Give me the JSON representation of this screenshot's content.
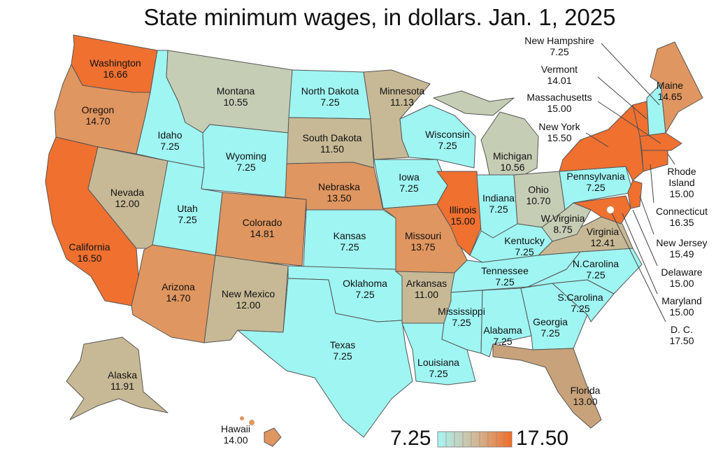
{
  "title": "State minimum wages, in dollars. Jan. 1, 2025",
  "legend": {
    "min": "7.25",
    "max": "17.50",
    "colors": [
      "#aef4f4",
      "#b7e3db",
      "#c0d2c2",
      "#c9c1a9",
      "#d2b090",
      "#db9f77",
      "#e48e5e",
      "#ed7d45",
      "#f06a2c"
    ]
  },
  "colors": {
    "federal": "#9ff5f2",
    "tan": "#c8b996",
    "sage": "#c6cdb5",
    "orange_light": "#e09660",
    "orange_dark": "#f07030",
    "dc_marker": "#ffffff",
    "coast": "#b98a5f"
  },
  "states": [
    {
      "name": "Washington",
      "wage": "16.66"
    },
    {
      "name": "Oregon",
      "wage": "14.70"
    },
    {
      "name": "California",
      "wage": "16.50"
    },
    {
      "name": "Nevada",
      "wage": "12.00"
    },
    {
      "name": "Idaho",
      "wage": "7.25"
    },
    {
      "name": "Montana",
      "wage": "10.55"
    },
    {
      "name": "Wyoming",
      "wage": "7.25"
    },
    {
      "name": "Utah",
      "wage": "7.25"
    },
    {
      "name": "Colorado",
      "wage": "14.81"
    },
    {
      "name": "Arizona",
      "wage": "14.70"
    },
    {
      "name": "New Mexico",
      "wage": "12.00"
    },
    {
      "name": "North Dakota",
      "wage": "7.25"
    },
    {
      "name": "South Dakota",
      "wage": "11.50"
    },
    {
      "name": "Nebraska",
      "wage": "13.50"
    },
    {
      "name": "Kansas",
      "wage": "7.25"
    },
    {
      "name": "Oklahoma",
      "wage": "7.25"
    },
    {
      "name": "Texas",
      "wage": "7.25"
    },
    {
      "name": "Minnesota",
      "wage": "11.13"
    },
    {
      "name": "Iowa",
      "wage": "7.25"
    },
    {
      "name": "Missouri",
      "wage": "13.75"
    },
    {
      "name": "Arkansas",
      "wage": "11.00"
    },
    {
      "name": "Louisiana",
      "wage": "7.25"
    },
    {
      "name": "Wisconsin",
      "wage": "7.25"
    },
    {
      "name": "Illinois",
      "wage": "15.00"
    },
    {
      "name": "Michigan",
      "wage": "10.56"
    },
    {
      "name": "Indiana",
      "wage": "7.25"
    },
    {
      "name": "Ohio",
      "wage": "10.70"
    },
    {
      "name": "Kentucky",
      "wage": "7.25"
    },
    {
      "name": "Tennessee",
      "wage": "7.25"
    },
    {
      "name": "Mississippi",
      "wage": "7.25"
    },
    {
      "name": "Alabama",
      "wage": "7.25"
    },
    {
      "name": "Georgia",
      "wage": "7.25"
    },
    {
      "name": "Florida",
      "wage": "13.00"
    },
    {
      "name": "S.Carolina",
      "wage": "7.25"
    },
    {
      "name": "N.Carolina",
      "wage": "7.25"
    },
    {
      "name": "Virginia",
      "wage": "12.41"
    },
    {
      "name": "W.Virginia",
      "wage": "8.75"
    },
    {
      "name": "Pennsylvania",
      "wage": "7.25"
    },
    {
      "name": "New York",
      "wage": "15.50"
    },
    {
      "name": "Maine",
      "wage": "14.65"
    },
    {
      "name": "Alaska",
      "wage": "11.91"
    },
    {
      "name": "Hawaii",
      "wage": "14.00"
    }
  ],
  "callouts": [
    {
      "name": "New Hampshire",
      "wage": "7.25"
    },
    {
      "name": "Vermont",
      "wage": "14.01"
    },
    {
      "name": "Massachusetts",
      "wage": "15.00"
    },
    {
      "name": "New York",
      "wage": "15.50"
    },
    {
      "name": "Rhode",
      "name2": "Island",
      "wage": "15.00"
    },
    {
      "name": "Connecticut",
      "wage": "16.35"
    },
    {
      "name": "New Jersey",
      "wage": "15.49"
    },
    {
      "name": "Delaware",
      "wage": "15.00"
    },
    {
      "name": "Maryland",
      "wage": "15.00"
    },
    {
      "name": "D. C.",
      "wage": "17.50"
    }
  ]
}
